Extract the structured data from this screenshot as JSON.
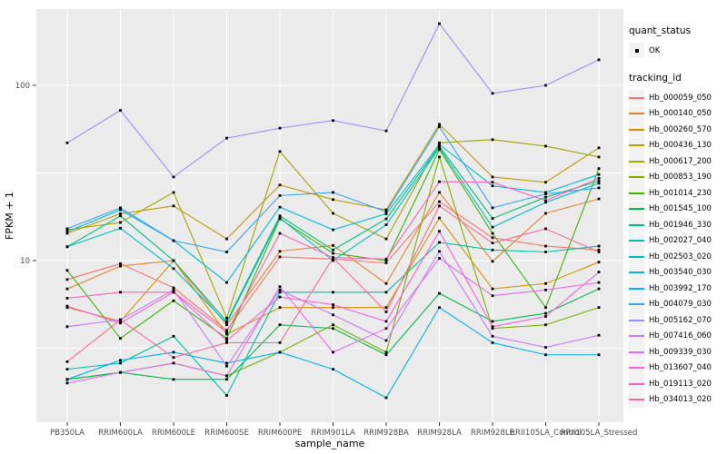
{
  "figure": {
    "panel_background": "#EBEBEB",
    "gridline_color": "#FFFFFF",
    "axis_text_color": "#4D4D4D",
    "axis_title_color": "#000000",
    "point_color": "#000000",
    "legend_key_fill": "#F2F2F2"
  },
  "legend": {
    "quant_status": {
      "title": "quant_status",
      "items": [
        {
          "label": "OK",
          "marker": "black-point"
        }
      ]
    },
    "tracking": {
      "title": "tracking_id"
    }
  },
  "chart_data": {
    "type": "line",
    "title": "",
    "xlabel": "sample_name",
    "ylabel": "FPKM + 1",
    "y_scale": "log10",
    "ylim": [
      1.2,
      280
    ],
    "grid": true,
    "legend_position": "right",
    "y_major_breaks": [
      10,
      100
    ],
    "y_tick_labels": [
      "10",
      "100"
    ],
    "y_minor_breaks": [
      3.162,
      31.623
    ],
    "point_marker": {
      "shape": "square",
      "size": 3,
      "color": "#000000"
    },
    "categories": [
      "PB350LA",
      "RRIM600LA",
      "RRIM600LE",
      "RRIM600SE",
      "RRIM600PE",
      "RRIM901LA",
      "RRIM928BA",
      "RRIM928LA",
      "RRIM928LE",
      "RRII105LA_Control",
      "RRII105LA_Stressed"
    ],
    "series": [
      {
        "name": "Hb_000059_050",
        "color": "#F8766D",
        "values": [
          7.8,
          9.6,
          7.0,
          4.0,
          10.5,
          10.2,
          9.7,
          21.7,
          13.5,
          12.1,
          11.5
        ]
      },
      {
        "name": "Hb_000140_050",
        "color": "#EA8331",
        "values": [
          6.9,
          9.3,
          10.0,
          4.3,
          11.3,
          12.2,
          7.4,
          24.5,
          9.9,
          18.6,
          22.5
        ]
      },
      {
        "name": "Hb_000260_570",
        "color": "#D89000",
        "values": [
          5.4,
          4.5,
          10.0,
          3.8,
          5.4,
          5.4,
          5.4,
          17.5,
          6.9,
          7.4,
          9.8
        ]
      },
      {
        "name": "Hb_000436_130",
        "color": "#C09B00",
        "values": [
          14.3,
          18.5,
          20.5,
          13.3,
          27.0,
          22.3,
          19.5,
          60.0,
          30.0,
          28.0,
          44.0
        ]
      },
      {
        "name": "Hb_000617_200",
        "color": "#A3A500",
        "values": [
          15.0,
          16.5,
          24.5,
          4.7,
          42.0,
          18.6,
          13.3,
          47.0,
          49.0,
          45.0,
          39.0
        ]
      },
      {
        "name": "Hb_000853_190",
        "color": "#7CAE00",
        "values": [
          2.1,
          2.3,
          2.6,
          2.2,
          3.0,
          4.3,
          3.0,
          39.0,
          4.1,
          4.3,
          5.4
        ]
      },
      {
        "name": "Hb_001014_230",
        "color": "#39B600",
        "values": [
          8.8,
          3.6,
          5.9,
          3.6,
          17.3,
          11.0,
          10.0,
          43.0,
          14.3,
          5.4,
          33.5
        ]
      },
      {
        "name": "Hb_001545_100",
        "color": "#00BB4E",
        "values": [
          2.1,
          2.3,
          2.1,
          2.1,
          4.3,
          4.1,
          2.9,
          6.5,
          4.5,
          5.0,
          6.9
        ]
      },
      {
        "name": "Hb_001946_330",
        "color": "#00BF7D",
        "values": [
          12.0,
          18.0,
          10.0,
          4.5,
          18.0,
          11.5,
          17.3,
          45.0,
          17.4,
          23.0,
          28.5
        ]
      },
      {
        "name": "Hb_002027_040",
        "color": "#00C1A3",
        "values": [
          2.4,
          2.6,
          3.7,
          1.7,
          6.6,
          6.6,
          6.6,
          12.7,
          11.5,
          11.2,
          12.1
        ]
      },
      {
        "name": "Hb_002503_020",
        "color": "#00BFC4",
        "values": [
          12.0,
          15.3,
          9.0,
          4.4,
          17.5,
          10.0,
          16.0,
          44.0,
          15.5,
          21.5,
          27.6
        ]
      },
      {
        "name": "Hb_003540_030",
        "color": "#00BAE0",
        "values": [
          14.6,
          19.5,
          13.0,
          7.5,
          20.2,
          15.0,
          18.5,
          46.0,
          26.7,
          24.5,
          31.0
        ]
      },
      {
        "name": "Hb_003992_170",
        "color": "#00B0F6",
        "values": [
          2.1,
          2.7,
          3.0,
          2.6,
          3.0,
          2.4,
          1.65,
          5.4,
          3.4,
          2.9,
          2.9
        ]
      },
      {
        "name": "Hb_004079_030",
        "color": "#35A2FF",
        "values": [
          15.2,
          20.0,
          13.0,
          11.2,
          23.5,
          24.5,
          19.0,
          58.0,
          20.0,
          24.0,
          26.0
        ]
      },
      {
        "name": "Hb_005162_070",
        "color": "#9590FF",
        "values": [
          47,
          72,
          30,
          50,
          57,
          63,
          55,
          225,
          90,
          100,
          140
        ]
      },
      {
        "name": "Hb_007416_060",
        "color": "#C77CFF",
        "values": [
          4.2,
          4.6,
          6.8,
          2.5,
          6.8,
          4.9,
          3.5,
          11.3,
          3.7,
          3.2,
          3.75
        ]
      },
      {
        "name": "Hb_009339_030",
        "color": "#E76BF3",
        "values": [
          2.0,
          2.3,
          2.6,
          2.2,
          7.1,
          3.0,
          4.1,
          10.3,
          6.3,
          6.8,
          7.5
        ]
      },
      {
        "name": "Hb_013607_040",
        "color": "#FA62DB",
        "values": [
          5.5,
          4.4,
          6.6,
          3.5,
          6.2,
          5.6,
          4.5,
          14.7,
          4.2,
          4.8,
          8.6
        ]
      },
      {
        "name": "Hb_019113_020",
        "color": "#FF62BC",
        "values": [
          6.1,
          6.6,
          6.6,
          3.9,
          14.3,
          10.4,
          10.2,
          28.2,
          28.0,
          22.0,
          29.5
        ]
      },
      {
        "name": "Hb_034013_020",
        "color": "#FF6A98",
        "values": [
          2.65,
          4.6,
          2.8,
          3.4,
          3.4,
          10.4,
          5.1,
          20.5,
          12.6,
          15.2,
          11.2
        ]
      }
    ]
  }
}
